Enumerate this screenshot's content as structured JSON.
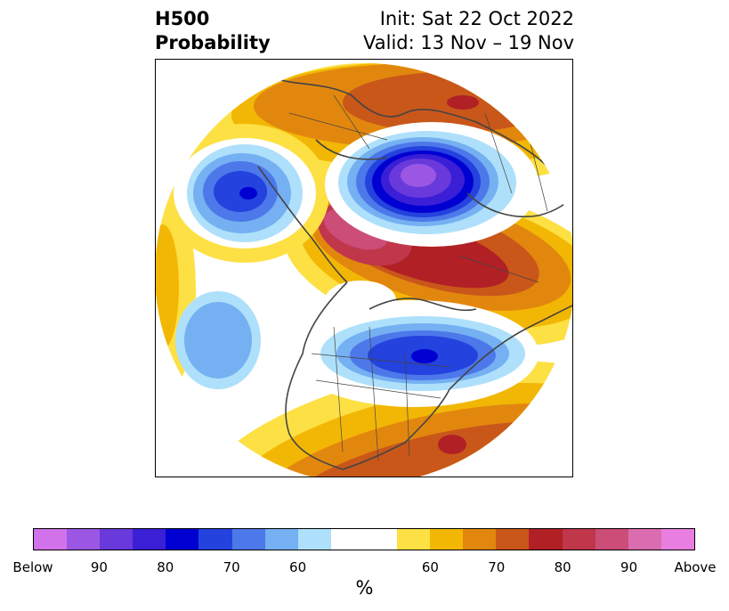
{
  "title": {
    "left_line1": "H500",
    "left_line2": "Probability",
    "right_line1": "Init: Sat 22 Oct 2022",
    "right_line2": "Valid: 13 Nov – 19 Nov"
  },
  "colorbar": {
    "colors": [
      "#d272ea",
      "#9b57e4",
      "#6a39dc",
      "#3a1fd7",
      "#0000d2",
      "#2342de",
      "#4d78ea",
      "#75b0f2",
      "#aee0fb",
      "#ffffff",
      "#fde044",
      "#f2b705",
      "#e2870e",
      "#c9571a",
      "#b12025",
      "#c0364b",
      "#cb4d78",
      "#dc6cb0",
      "#e87fe0"
    ],
    "tick_labels": [
      "Below",
      "90",
      "80",
      "70",
      "60",
      "60",
      "70",
      "80",
      "90",
      "Above"
    ],
    "unit": "%"
  },
  "map": {
    "projection": "north-polar-stereographic",
    "below_color": "#0000d2",
    "above_color": "#b12025"
  }
}
